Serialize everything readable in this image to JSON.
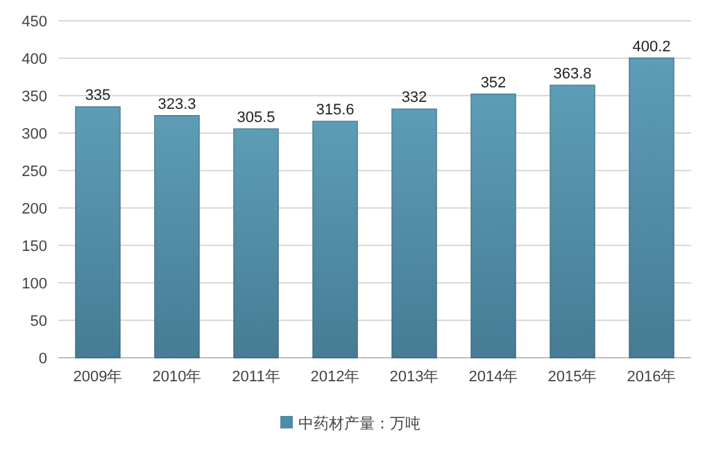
{
  "chart_data": {
    "type": "bar",
    "categories": [
      "2009年",
      "2010年",
      "2011年",
      "2012年",
      "2013年",
      "2014年",
      "2015年",
      "2016年"
    ],
    "series": [
      {
        "name": "中药材产量：万吨",
        "color": "#4e8ca6",
        "values": [
          335,
          323.3,
          305.5,
          315.6,
          332,
          352,
          363.8,
          400.2
        ]
      }
    ],
    "ylim": [
      0,
      450
    ],
    "yticks": [
      0,
      50,
      100,
      150,
      200,
      250,
      300,
      350,
      400,
      450
    ],
    "grid": "y",
    "legend": "bottom",
    "data_labels": true
  }
}
